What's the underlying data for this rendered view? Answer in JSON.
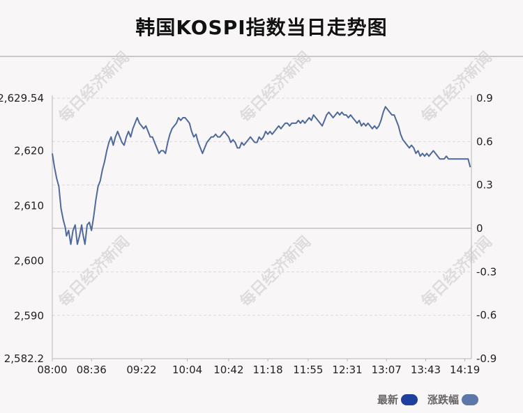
{
  "colors": {
    "line": "#4f6a98",
    "swatch_latest": "#1f3f9e",
    "swatch_change": "#5d77a8",
    "grid": "#dcdcdc",
    "baseline": "#c4c4c4",
    "axis": "#b8b8b8",
    "watermark": "#d6d2d4"
  },
  "watermark_text": "每日经济新闻",
  "chart_data": {
    "type": "line",
    "title": "韩国KOSPI指数当日走势图",
    "left_axis": {
      "min": 2582.2,
      "max": 2629.54,
      "ticks": [
        2582.2,
        2590,
        2600,
        2610,
        2620,
        2629.54
      ],
      "tick_labels": [
        "2,582.2",
        "2,590",
        "2,600",
        "2,610",
        "2,620",
        "2,629.54"
      ]
    },
    "right_axis": {
      "min": -0.9,
      "max": 0.9,
      "ticks": [
        -0.9,
        -0.6,
        -0.3,
        0,
        0.3,
        0.6,
        0.9
      ],
      "tick_labels": [
        "-0.9",
        "-0.6",
        "-0.3",
        "0",
        "0.3",
        "0.6",
        "0.9"
      ]
    },
    "x_axis": {
      "min": "08:00",
      "max": "14:25",
      "tick_labels": [
        "08:00",
        "08:36",
        "09:22",
        "10:04",
        "10:42",
        "11:18",
        "11:55",
        "12:31",
        "13:07",
        "13:43",
        "14:19"
      ]
    },
    "baseline_value": 2605.9,
    "grid": true,
    "legend_position": "bottom-right",
    "series": [
      {
        "legend_label": "最新",
        "points": [
          [
            "08:00",
            2619.5
          ],
          [
            "08:02",
            2617.0
          ],
          [
            "08:04",
            2615.0
          ],
          [
            "08:06",
            2613.5
          ],
          [
            "08:08",
            2609.5
          ],
          [
            "08:10",
            2607.5
          ],
          [
            "08:12",
            2606.0
          ],
          [
            "08:13",
            2604.5
          ],
          [
            "08:15",
            2605.5
          ],
          [
            "08:17",
            2603.0
          ],
          [
            "08:19",
            2605.5
          ],
          [
            "08:21",
            2606.5
          ],
          [
            "08:23",
            2603.0
          ],
          [
            "08:25",
            2604.5
          ],
          [
            "08:27",
            2606.5
          ],
          [
            "08:28",
            2605.0
          ],
          [
            "08:30",
            2603.0
          ],
          [
            "08:32",
            2606.5
          ],
          [
            "08:34",
            2607.0
          ],
          [
            "08:36",
            2605.5
          ],
          [
            "08:38",
            2608.0
          ],
          [
            "08:40",
            2611.0
          ],
          [
            "08:42",
            2613.5
          ],
          [
            "08:44",
            2614.5
          ],
          [
            "08:46",
            2616.5
          ],
          [
            "08:48",
            2618.0
          ],
          [
            "08:50",
            2620.0
          ],
          [
            "08:52",
            2621.5
          ],
          [
            "08:54",
            2622.5
          ],
          [
            "08:56",
            2621.0
          ],
          [
            "08:58",
            2622.5
          ],
          [
            "09:00",
            2623.5
          ],
          [
            "09:02",
            2622.5
          ],
          [
            "09:04",
            2621.5
          ],
          [
            "09:06",
            2621.0
          ],
          [
            "09:08",
            2622.5
          ],
          [
            "09:10",
            2623.5
          ],
          [
            "09:12",
            2622.5
          ],
          [
            "09:14",
            2624.0
          ],
          [
            "09:16",
            2625.0
          ],
          [
            "09:18",
            2626.0
          ],
          [
            "09:20",
            2625.0
          ],
          [
            "09:22",
            2624.5
          ],
          [
            "09:24",
            2624.0
          ],
          [
            "09:26",
            2624.5
          ],
          [
            "09:28",
            2623.5
          ],
          [
            "09:30",
            2622.5
          ],
          [
            "09:32",
            2622.5
          ],
          [
            "09:34",
            2621.5
          ],
          [
            "09:36",
            2620.5
          ],
          [
            "09:38",
            2619.5
          ],
          [
            "09:40",
            2620.0
          ],
          [
            "09:42",
            2620.0
          ],
          [
            "09:44",
            2619.5
          ],
          [
            "09:46",
            2621.5
          ],
          [
            "09:48",
            2623.0
          ],
          [
            "09:50",
            2624.0
          ],
          [
            "09:52",
            2624.5
          ],
          [
            "09:54",
            2625.0
          ],
          [
            "09:56",
            2626.0
          ],
          [
            "09:58",
            2625.5
          ],
          [
            "10:00",
            2626.0
          ],
          [
            "10:02",
            2626.0
          ],
          [
            "10:04",
            2625.5
          ],
          [
            "10:06",
            2625.0
          ],
          [
            "10:08",
            2623.5
          ],
          [
            "10:10",
            2622.5
          ],
          [
            "10:12",
            2623.0
          ],
          [
            "10:14",
            2621.5
          ],
          [
            "10:16",
            2620.5
          ],
          [
            "10:18",
            2619.5
          ],
          [
            "10:20",
            2620.5
          ],
          [
            "10:22",
            2621.5
          ],
          [
            "10:24",
            2622.0
          ],
          [
            "10:26",
            2622.5
          ],
          [
            "10:28",
            2622.5
          ],
          [
            "10:30",
            2623.0
          ],
          [
            "10:32",
            2622.5
          ],
          [
            "10:34",
            2622.5
          ],
          [
            "10:36",
            2623.0
          ],
          [
            "10:38",
            2623.5
          ],
          [
            "10:40",
            2623.0
          ],
          [
            "10:42",
            2622.5
          ],
          [
            "10:44",
            2621.5
          ],
          [
            "10:46",
            2622.0
          ],
          [
            "10:48",
            2621.5
          ],
          [
            "10:50",
            2620.5
          ],
          [
            "10:52",
            2620.5
          ],
          [
            "10:54",
            2621.5
          ],
          [
            "10:56",
            2621.0
          ],
          [
            "10:58",
            2621.5
          ],
          [
            "11:00",
            2622.0
          ],
          [
            "11:02",
            2622.5
          ],
          [
            "11:04",
            2622.0
          ],
          [
            "11:06",
            2621.5
          ],
          [
            "11:08",
            2621.5
          ],
          [
            "11:10",
            2622.5
          ],
          [
            "11:12",
            2622.0
          ],
          [
            "11:14",
            2622.5
          ],
          [
            "11:16",
            2623.5
          ],
          [
            "11:18",
            2623.0
          ],
          [
            "11:20",
            2623.5
          ],
          [
            "11:22",
            2623.0
          ],
          [
            "11:24",
            2623.5
          ],
          [
            "11:26",
            2624.0
          ],
          [
            "11:28",
            2624.5
          ],
          [
            "11:30",
            2624.0
          ],
          [
            "11:32",
            2624.5
          ],
          [
            "11:34",
            2625.0
          ],
          [
            "11:36",
            2625.0
          ],
          [
            "11:38",
            2624.5
          ],
          [
            "11:40",
            2625.0
          ],
          [
            "11:42",
            2625.0
          ],
          [
            "11:44",
            2625.0
          ],
          [
            "11:46",
            2625.5
          ],
          [
            "11:48",
            2625.0
          ],
          [
            "11:50",
            2625.5
          ],
          [
            "11:52",
            2625.0
          ],
          [
            "11:54",
            2625.5
          ],
          [
            "11:56",
            2626.0
          ],
          [
            "11:58",
            2625.5
          ],
          [
            "12:00",
            2626.5
          ],
          [
            "12:02",
            2626.0
          ],
          [
            "12:04",
            2625.5
          ],
          [
            "12:06",
            2625.0
          ],
          [
            "12:08",
            2624.5
          ],
          [
            "12:10",
            2625.5
          ],
          [
            "12:12",
            2626.5
          ],
          [
            "12:14",
            2627.0
          ],
          [
            "12:16",
            2626.5
          ],
          [
            "12:18",
            2626.0
          ],
          [
            "12:20",
            2626.5
          ],
          [
            "12:22",
            2627.0
          ],
          [
            "12:24",
            2626.5
          ],
          [
            "12:26",
            2627.0
          ],
          [
            "12:28",
            2626.5
          ],
          [
            "12:30",
            2626.5
          ],
          [
            "12:32",
            2626.0
          ],
          [
            "12:34",
            2626.5
          ],
          [
            "12:36",
            2626.0
          ],
          [
            "12:38",
            2625.5
          ],
          [
            "12:40",
            2625.0
          ],
          [
            "12:42",
            2625.5
          ],
          [
            "12:44",
            2624.5
          ],
          [
            "12:46",
            2625.0
          ],
          [
            "12:48",
            2624.5
          ],
          [
            "12:50",
            2625.0
          ],
          [
            "12:52",
            2624.5
          ],
          [
            "12:54",
            2624.0
          ],
          [
            "12:56",
            2624.5
          ],
          [
            "12:58",
            2624.0
          ],
          [
            "13:00",
            2624.5
          ],
          [
            "13:02",
            2625.5
          ],
          [
            "13:04",
            2627.0
          ],
          [
            "13:06",
            2628.0
          ],
          [
            "13:08",
            2627.5
          ],
          [
            "13:10",
            2627.0
          ],
          [
            "13:12",
            2626.5
          ],
          [
            "13:14",
            2626.5
          ],
          [
            "13:16",
            2625.5
          ],
          [
            "13:18",
            2624.5
          ],
          [
            "13:20",
            2623.0
          ],
          [
            "13:22",
            2622.0
          ],
          [
            "13:24",
            2621.5
          ],
          [
            "13:26",
            2621.0
          ],
          [
            "13:28",
            2620.5
          ],
          [
            "13:30",
            2621.0
          ],
          [
            "13:32",
            2620.5
          ],
          [
            "13:34",
            2619.5
          ],
          [
            "13:36",
            2620.0
          ],
          [
            "13:38",
            2619.0
          ],
          [
            "13:40",
            2619.5
          ],
          [
            "13:42",
            2619.0
          ],
          [
            "13:44",
            2619.5
          ],
          [
            "13:46",
            2619.0
          ],
          [
            "13:48",
            2619.5
          ],
          [
            "13:50",
            2620.0
          ],
          [
            "13:52",
            2619.5
          ],
          [
            "13:54",
            2619.0
          ],
          [
            "13:56",
            2618.5
          ],
          [
            "13:58",
            2618.5
          ],
          [
            "14:00",
            2618.5
          ],
          [
            "14:02",
            2619.0
          ],
          [
            "14:04",
            2618.5
          ],
          [
            "14:06",
            2618.5
          ],
          [
            "14:08",
            2618.5
          ],
          [
            "14:10",
            2618.5
          ],
          [
            "14:12",
            2618.5
          ],
          [
            "14:14",
            2618.5
          ],
          [
            "14:16",
            2618.5
          ],
          [
            "14:18",
            2618.5
          ],
          [
            "14:20",
            2618.5
          ],
          [
            "14:22",
            2618.5
          ],
          [
            "14:24",
            2617.0
          ]
        ]
      },
      {
        "legend_label": "涨跌幅"
      }
    ]
  }
}
